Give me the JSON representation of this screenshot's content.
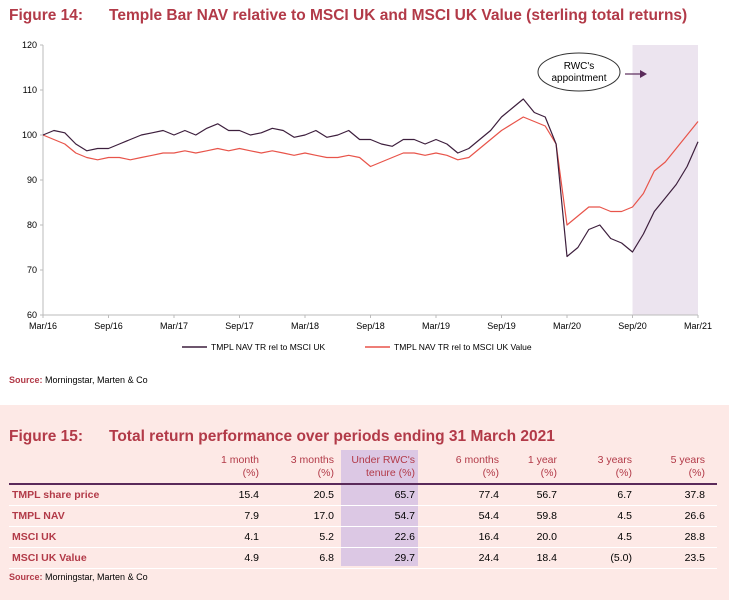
{
  "figure14": {
    "number": "Figure 14:",
    "title": "Temple Bar NAV relative to MSCI UK and MSCI UK Value (sterling total returns)"
  },
  "chart_data": {
    "type": "line",
    "x_ticks": [
      "Mar/16",
      "Sep/16",
      "Mar/17",
      "Sep/17",
      "Mar/18",
      "Sep/18",
      "Mar/19",
      "Sep/19",
      "Mar/20",
      "Sep/20",
      "Mar/21"
    ],
    "y_ticks": [
      "120",
      "110",
      "100",
      "90",
      "80",
      "70",
      "60"
    ],
    "ylim": [
      60,
      120
    ],
    "grid": false,
    "legend_position": "bottom",
    "annotation": {
      "text_line1": "RWC's",
      "text_line2": "appointment",
      "shaded_from": "Sep/20",
      "shaded_to": "Mar/21"
    },
    "series": [
      {
        "name": "TMPL NAV TR rel to MSCI UK",
        "color": "#3d1f3d",
        "points": [
          [
            "Mar/16",
            100
          ],
          [
            "Apr/16",
            101
          ],
          [
            "May/16",
            100.5
          ],
          [
            "Jun/16",
            98
          ],
          [
            "Jul/16",
            96.5
          ],
          [
            "Aug/16",
            97
          ],
          [
            "Sep/16",
            97
          ],
          [
            "Oct/16",
            98
          ],
          [
            "Nov/16",
            99
          ],
          [
            "Dec/16",
            100
          ],
          [
            "Jan/17",
            100.5
          ],
          [
            "Feb/17",
            101
          ],
          [
            "Mar/17",
            100
          ],
          [
            "Apr/17",
            101
          ],
          [
            "May/17",
            100
          ],
          [
            "Jun/17",
            101.5
          ],
          [
            "Jul/17",
            102.5
          ],
          [
            "Aug/17",
            101
          ],
          [
            "Sep/17",
            101
          ],
          [
            "Oct/17",
            100
          ],
          [
            "Nov/17",
            100.5
          ],
          [
            "Dec/17",
            101.5
          ],
          [
            "Jan/18",
            101
          ],
          [
            "Feb/18",
            99.5
          ],
          [
            "Mar/18",
            100
          ],
          [
            "Apr/18",
            101
          ],
          [
            "May/18",
            99.5
          ],
          [
            "Jun/18",
            100
          ],
          [
            "Jul/18",
            101
          ],
          [
            "Aug/18",
            99
          ],
          [
            "Sep/18",
            99
          ],
          [
            "Oct/18",
            98
          ],
          [
            "Nov/18",
            97.5
          ],
          [
            "Dec/18",
            99
          ],
          [
            "Jan/19",
            99
          ],
          [
            "Feb/19",
            98
          ],
          [
            "Mar/19",
            99
          ],
          [
            "Apr/19",
            98
          ],
          [
            "May/19",
            96
          ],
          [
            "Jun/19",
            97
          ],
          [
            "Jul/19",
            99
          ],
          [
            "Aug/19",
            101
          ],
          [
            "Sep/19",
            104
          ],
          [
            "Oct/19",
            106
          ],
          [
            "Nov/19",
            108
          ],
          [
            "Dec/19",
            105
          ],
          [
            "Jan/20",
            104
          ],
          [
            "Feb/20",
            98
          ],
          [
            "Mar/20",
            73
          ],
          [
            "Apr/20",
            75
          ],
          [
            "May/20",
            79
          ],
          [
            "Jun/20",
            80
          ],
          [
            "Jul/20",
            77
          ],
          [
            "Aug/20",
            76
          ],
          [
            "Sep/20",
            74
          ],
          [
            "Oct/20",
            78
          ],
          [
            "Nov/20",
            83
          ],
          [
            "Dec/20",
            86
          ],
          [
            "Jan/21",
            89
          ],
          [
            "Feb/21",
            93
          ],
          [
            "Mar/21",
            98.5
          ]
        ]
      },
      {
        "name": "TMPL NAV TR rel to MSCI UK Value",
        "color": "#e8544a",
        "points": [
          [
            "Mar/16",
            100
          ],
          [
            "Apr/16",
            99
          ],
          [
            "May/16",
            98
          ],
          [
            "Jun/16",
            96
          ],
          [
            "Jul/16",
            95
          ],
          [
            "Aug/16",
            94.5
          ],
          [
            "Sep/16",
            95
          ],
          [
            "Oct/16",
            95
          ],
          [
            "Nov/16",
            94.5
          ],
          [
            "Dec/16",
            95
          ],
          [
            "Jan/17",
            95.5
          ],
          [
            "Feb/17",
            96
          ],
          [
            "Mar/17",
            96
          ],
          [
            "Apr/17",
            96.5
          ],
          [
            "May/17",
            96
          ],
          [
            "Jun/17",
            96.5
          ],
          [
            "Jul/17",
            97
          ],
          [
            "Aug/17",
            96.5
          ],
          [
            "Sep/17",
            97
          ],
          [
            "Oct/17",
            96.5
          ],
          [
            "Nov/17",
            96
          ],
          [
            "Dec/17",
            96.5
          ],
          [
            "Jan/18",
            96
          ],
          [
            "Feb/18",
            95.5
          ],
          [
            "Mar/18",
            96
          ],
          [
            "Apr/18",
            95.5
          ],
          [
            "May/18",
            95
          ],
          [
            "Jun/18",
            95
          ],
          [
            "Jul/18",
            95.5
          ],
          [
            "Aug/18",
            95
          ],
          [
            "Sep/18",
            93
          ],
          [
            "Oct/18",
            94
          ],
          [
            "Nov/18",
            95
          ],
          [
            "Dec/18",
            96
          ],
          [
            "Jan/19",
            96
          ],
          [
            "Feb/19",
            95.5
          ],
          [
            "Mar/19",
            96
          ],
          [
            "Apr/19",
            95.5
          ],
          [
            "May/19",
            94.5
          ],
          [
            "Jun/19",
            95
          ],
          [
            "Jul/19",
            97
          ],
          [
            "Aug/19",
            99
          ],
          [
            "Sep/19",
            101
          ],
          [
            "Oct/19",
            102.5
          ],
          [
            "Nov/19",
            104
          ],
          [
            "Dec/19",
            103
          ],
          [
            "Jan/20",
            102
          ],
          [
            "Feb/20",
            98
          ],
          [
            "Mar/20",
            80
          ],
          [
            "Apr/20",
            82
          ],
          [
            "May/20",
            84
          ],
          [
            "Jun/20",
            84
          ],
          [
            "Jul/20",
            83
          ],
          [
            "Aug/20",
            83
          ],
          [
            "Sep/20",
            84
          ],
          [
            "Oct/20",
            87
          ],
          [
            "Nov/20",
            92
          ],
          [
            "Dec/20",
            94
          ],
          [
            "Jan/21",
            97
          ],
          [
            "Feb/21",
            100
          ],
          [
            "Mar/21",
            103
          ]
        ]
      }
    ]
  },
  "figure14_source": {
    "label": "Source:",
    "text": "Morningstar, Marten & Co"
  },
  "figure15": {
    "number": "Figure 15:",
    "title": "Total return performance over periods ending 31 March 2021"
  },
  "table": {
    "headers": [
      {
        "line1": "1 month",
        "line2": "(%)"
      },
      {
        "line1": "3 months",
        "line2": "(%)"
      },
      {
        "line1": "Under RWC's",
        "line2": "tenure (%)"
      },
      {
        "line1": "6 months",
        "line2": "(%)"
      },
      {
        "line1": "1 year",
        "line2": "(%)"
      },
      {
        "line1": "3 years",
        "line2": "(%)"
      },
      {
        "line1": "5 years",
        "line2": "(%)"
      }
    ],
    "rows": [
      {
        "label": "TMPL share price",
        "values": [
          "15.4",
          "20.5",
          "65.7",
          "77.4",
          "56.7",
          "6.7",
          "37.8"
        ]
      },
      {
        "label": "TMPL NAV",
        "values": [
          "7.9",
          "17.0",
          "54.7",
          "54.4",
          "59.8",
          "4.5",
          "26.6"
        ]
      },
      {
        "label": "MSCI UK",
        "values": [
          "4.1",
          "5.2",
          "22.6",
          "16.4",
          "20.0",
          "4.5",
          "28.8"
        ]
      },
      {
        "label": "MSCI UK Value",
        "values": [
          "4.9",
          "6.8",
          "29.7",
          "24.4",
          "18.4",
          "(5.0)",
          "23.5"
        ]
      }
    ]
  },
  "figure15_source": {
    "label": "Source:",
    "text": "Morningstar, Marten & Co"
  },
  "colors": {
    "accent": "#b23a48",
    "highlight_column": "#dcc8e4",
    "shaded_region": "#ece4ef",
    "panel_background": "#fde9e6"
  }
}
